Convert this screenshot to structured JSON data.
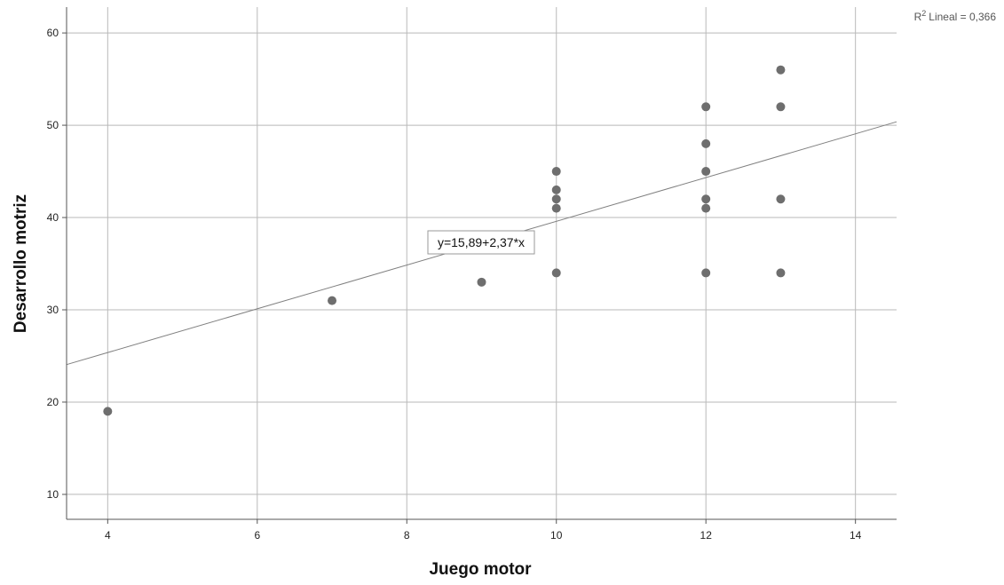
{
  "chart_data": {
    "type": "scatter",
    "title": "",
    "xlabel": "Juego motor",
    "ylabel": "Desarrollo motriz",
    "xlim": [
      3.45,
      14.55
    ],
    "ylim": [
      7.3,
      62.8
    ],
    "x_ticks": [
      4,
      6,
      8,
      10,
      12,
      14
    ],
    "y_ticks": [
      10,
      20,
      30,
      40,
      50,
      60
    ],
    "grid": true,
    "points": [
      {
        "x": 4,
        "y": 19
      },
      {
        "x": 7,
        "y": 31
      },
      {
        "x": 9,
        "y": 33
      },
      {
        "x": 10,
        "y": 34
      },
      {
        "x": 10,
        "y": 41
      },
      {
        "x": 10,
        "y": 42
      },
      {
        "x": 10,
        "y": 43
      },
      {
        "x": 10,
        "y": 45
      },
      {
        "x": 12,
        "y": 34
      },
      {
        "x": 12,
        "y": 41
      },
      {
        "x": 12,
        "y": 42
      },
      {
        "x": 12,
        "y": 45
      },
      {
        "x": 12,
        "y": 48
      },
      {
        "x": 12,
        "y": 52
      },
      {
        "x": 13,
        "y": 34
      },
      {
        "x": 13,
        "y": 42
      },
      {
        "x": 13,
        "y": 52
      },
      {
        "x": 13,
        "y": 56
      }
    ],
    "fit_line": {
      "intercept": 15.89,
      "slope": 2.37,
      "equation_label": "y=15,89+2,37*x"
    },
    "r2_label": "Lineal = 0,366",
    "r2_prefix": "R",
    "r2_sup": "2",
    "colors": {
      "points": "#6e6e6e",
      "grid": "#b9b9b9",
      "fit_line": "#808080",
      "axis": "#555555"
    }
  }
}
